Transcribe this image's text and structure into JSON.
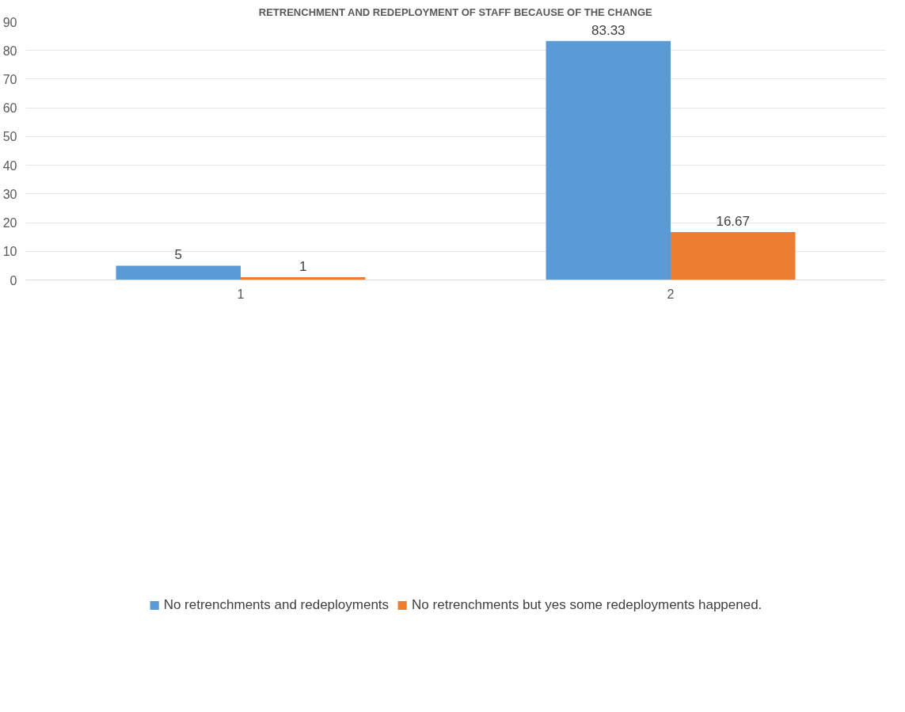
{
  "chart_data": {
    "type": "bar",
    "title": "RETRENCHMENT AND REDEPLOYMENT OF STAFF BECAUSE OF THE CHANGE",
    "categories": [
      "1",
      "2"
    ],
    "series": [
      {
        "name": "No retrenchments and redeployments",
        "color": "#5b9bd5",
        "values": [
          5,
          83.33
        ]
      },
      {
        "name": "No retrenchments but yes some redeployments happened.",
        "color": "#ed7d31",
        "values": [
          1,
          16.67
        ]
      }
    ],
    "ylim": [
      0,
      90
    ],
    "yticks": [
      0,
      10,
      20,
      30,
      40,
      50,
      60,
      70,
      80,
      90
    ],
    "grid": "y",
    "legend": "bottom",
    "data_labels": true
  }
}
